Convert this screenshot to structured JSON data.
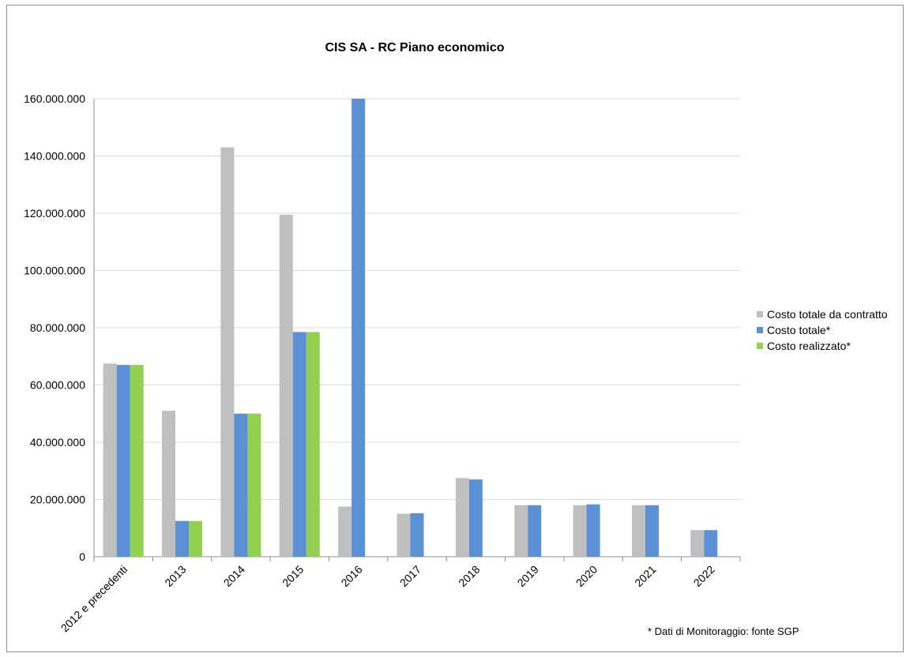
{
  "chart_data": {
    "type": "bar",
    "title": "CIS SA - RC Piano economico",
    "xlabel": "",
    "ylabel": "",
    "categories": [
      "2012 e precedenti",
      "2013",
      "2014",
      "2015",
      "2016",
      "2017",
      "2018",
      "2019",
      "2020",
      "2021",
      "2022"
    ],
    "series": [
      {
        "name": "Costo totale da contratto",
        "color": "#bfbfbf",
        "values": [
          67500000,
          51000000,
          143000000,
          119500000,
          17500000,
          15000000,
          27500000,
          18000000,
          18000000,
          18000000,
          9300000
        ]
      },
      {
        "name": "Costo totale*",
        "color": "#5b8fd6",
        "values": [
          67000000,
          12500000,
          50000000,
          78500000,
          160000000,
          15200000,
          27000000,
          18000000,
          18300000,
          18000000,
          9300000
        ]
      },
      {
        "name": "Costo realizzato*",
        "color": "#92d050",
        "values": [
          67000000,
          12500000,
          50000000,
          78500000,
          null,
          null,
          null,
          null,
          null,
          null,
          null
        ]
      }
    ],
    "ylim": [
      0,
      160000000
    ],
    "yticks": [
      0,
      20000000,
      40000000,
      60000000,
      80000000,
      100000000,
      120000000,
      140000000,
      160000000
    ],
    "ytick_labels": [
      "0",
      "20.000.000",
      "40.000.000",
      "60.000.000",
      "80.000.000",
      "100.000.000",
      "120.000.000",
      "140.000.000",
      "160.000.000"
    ],
    "grid": true,
    "legend_position": "right",
    "footnote": "* Dati di Monitoraggio: fonte SGP"
  }
}
